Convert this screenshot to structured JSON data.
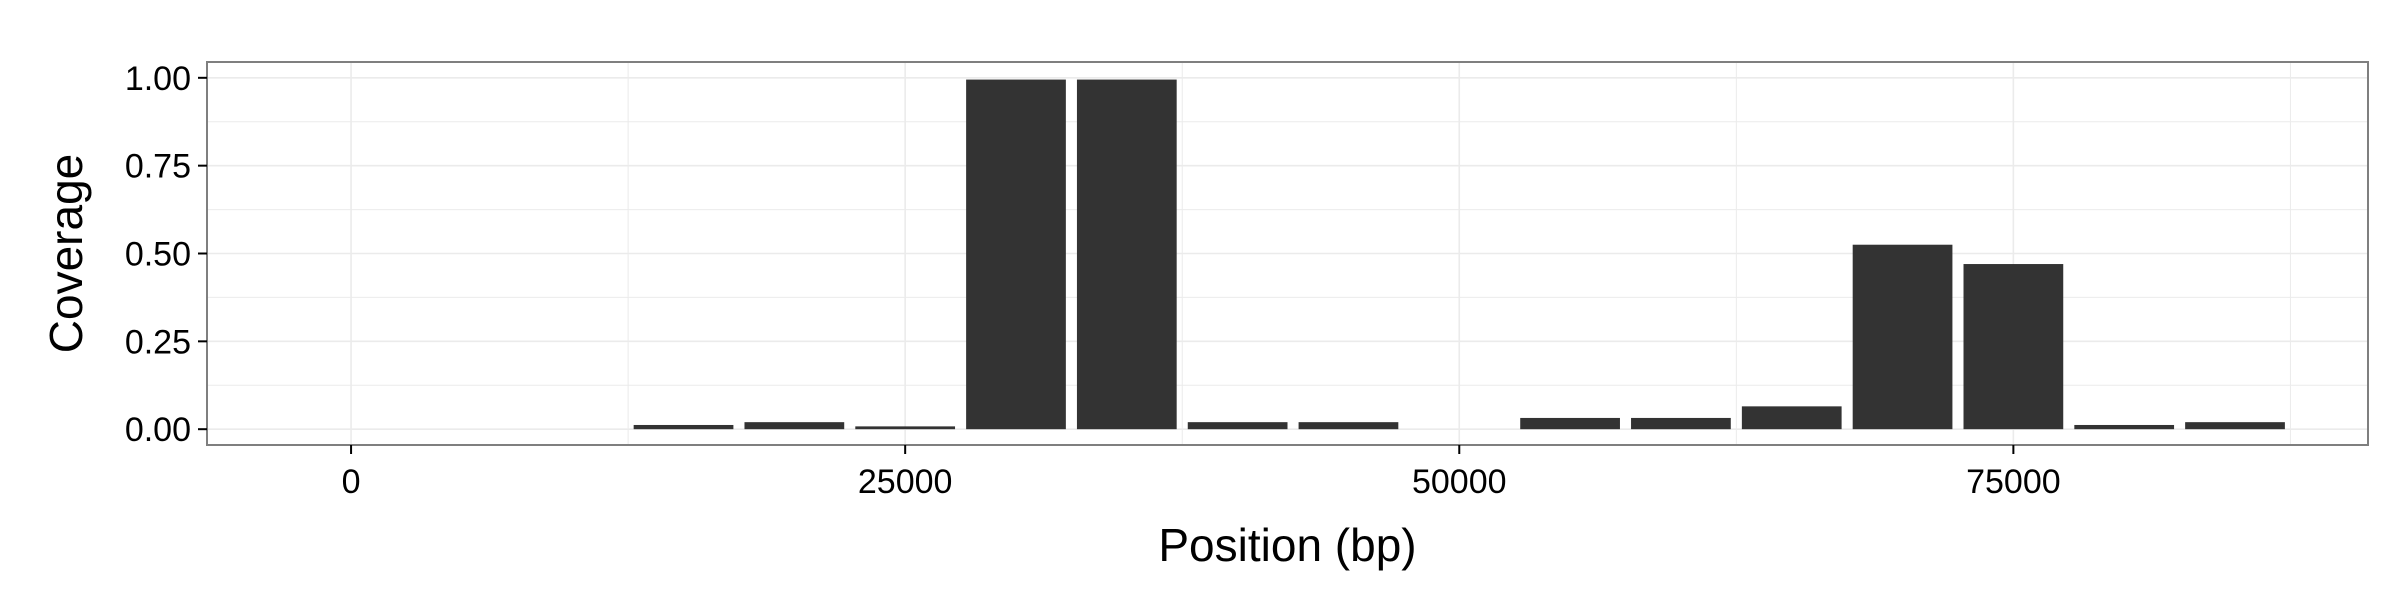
{
  "chart_data": {
    "type": "bar",
    "xlabel": "Position (bp)",
    "ylabel": "Coverage",
    "xlim": [
      -6500,
      91000
    ],
    "ylim": [
      -0.045,
      1.045
    ],
    "x_ticks": [
      0,
      25000,
      50000,
      75000
    ],
    "x_tick_labels": [
      "0",
      "25000",
      "50000",
      "75000"
    ],
    "y_ticks": [
      0.0,
      0.25,
      0.5,
      0.75,
      1.0
    ],
    "y_tick_labels": [
      "0.00",
      "0.25",
      "0.50",
      "0.75",
      "1.00"
    ],
    "bin_width": 5000,
    "bin_centers": [
      15000,
      20000,
      25000,
      30000,
      35000,
      40000,
      45000,
      50000,
      55000,
      60000,
      65000,
      70000,
      75000,
      80000,
      85000
    ],
    "values": [
      0.012,
      0.02,
      0.008,
      0.995,
      0.995,
      0.02,
      0.02,
      0.0,
      0.032,
      0.032,
      0.065,
      0.525,
      0.47,
      0.012,
      0.02
    ],
    "grid": true,
    "bar_color": "#333333",
    "panel_background": "#ffffff",
    "grid_color": "#ebebeb",
    "border_color": "#7f7f7f"
  }
}
